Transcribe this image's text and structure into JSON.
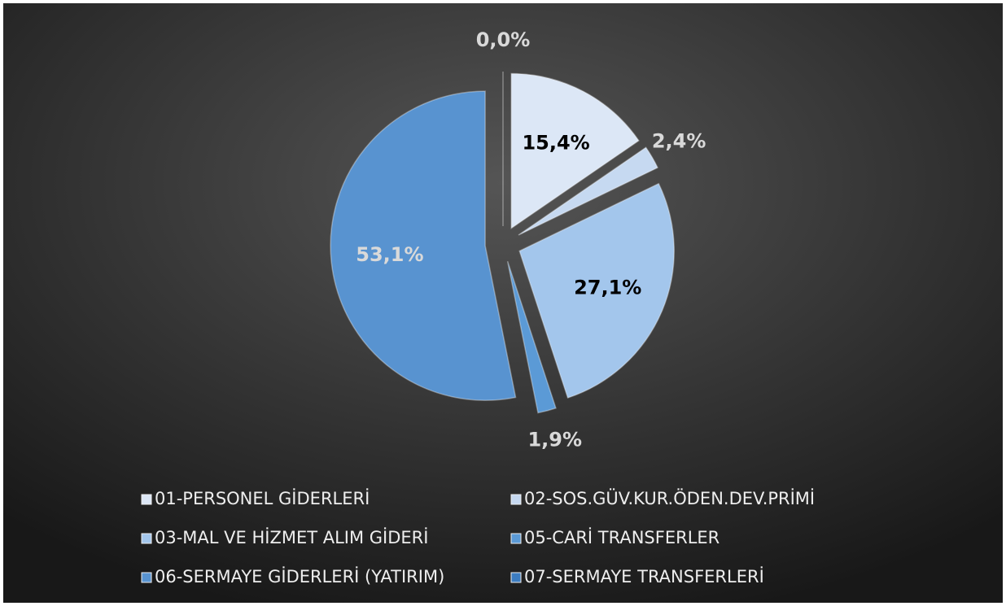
{
  "chart_data": {
    "type": "pie",
    "categories": [
      "01-PERSONEL GİDERLERİ",
      "02-SOS.GÜV.KUR.ÖDEN.DEV.PRİMİ",
      "03-MAL VE HİZMET ALIM GİDERİ",
      "05-CARİ TRANSFERLER",
      "06-SERMAYE GİDERLERİ (YATIRIM)",
      "07-SERMAYE TRANSFERLERİ"
    ],
    "values": [
      15.4,
      2.4,
      27.1,
      1.9,
      53.1,
      0.0
    ],
    "value_labels": [
      "15,4%",
      "2,4%",
      "27,1%",
      "1,9%",
      "53,1%",
      "0,0%"
    ],
    "colors": [
      "#dce7f6",
      "#c6d9f1",
      "#a3c6ec",
      "#5b9ad6",
      "#5893d0",
      "#3c7cc0"
    ],
    "legend": "bottom"
  }
}
